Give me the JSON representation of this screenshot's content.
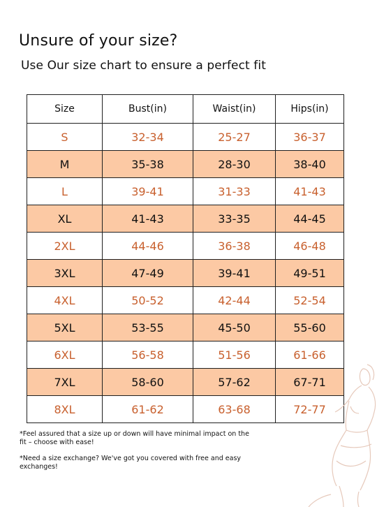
{
  "header": {
    "title": "Unsure of your size?",
    "subtitle": "Use Our size chart to ensure a perfect fit"
  },
  "table": {
    "columns": [
      "Size",
      "Bust(in)",
      "Waist(in)",
      "Hips(in)"
    ],
    "rows": [
      {
        "size": "S",
        "bust": "32-34",
        "waist": "25-27",
        "hips": "36-37"
      },
      {
        "size": "M",
        "bust": "35-38",
        "waist": "28-30",
        "hips": "38-40"
      },
      {
        "size": "L",
        "bust": "39-41",
        "waist": "31-33",
        "hips": "41-43"
      },
      {
        "size": "XL",
        "bust": "41-43",
        "waist": "33-35",
        "hips": "44-45"
      },
      {
        "size": "2XL",
        "bust": "44-46",
        "waist": "36-38",
        "hips": "46-48"
      },
      {
        "size": "3XL",
        "bust": "47-49",
        "waist": "39-41",
        "hips": "49-51"
      },
      {
        "size": "4XL",
        "bust": "50-52",
        "waist": "42-44",
        "hips": "52-54"
      },
      {
        "size": "5XL",
        "bust": "53-55",
        "waist": "45-50",
        "hips": "55-60"
      },
      {
        "size": "6XL",
        "bust": "56-58",
        "waist": "51-56",
        "hips": "61-66"
      },
      {
        "size": "7XL",
        "bust": "58-60",
        "waist": "57-62",
        "hips": "67-71"
      },
      {
        "size": "8XL",
        "bust": "61-62",
        "waist": "63-68",
        "hips": "72-77"
      }
    ]
  },
  "notes": {
    "note1": "*Feel assured that a size up or down will have minimal impact on the fit – choose with ease!",
    "note2": "*Need a size exchange? We've got you covered with free and easy exchanges!"
  },
  "colors": {
    "accent_text": "#c8602e",
    "highlight_row": "#fcc9a4",
    "figure_line": "#e6c9bb"
  },
  "icons": {
    "figure": "body-outline-illustration"
  }
}
